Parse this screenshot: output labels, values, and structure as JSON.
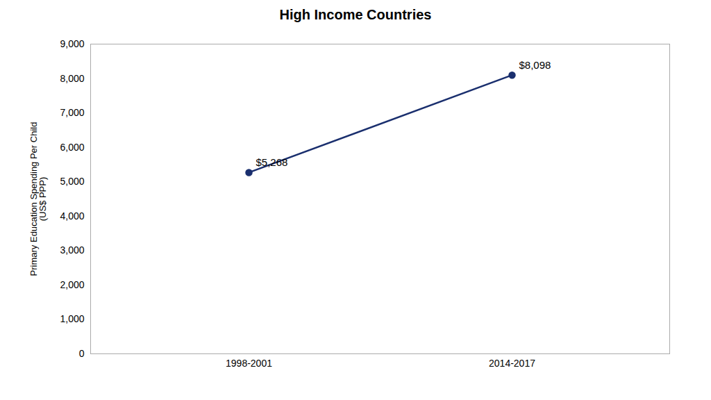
{
  "chart_data": {
    "type": "line",
    "title": "High Income Countries",
    "ylabel": "Primary Education Spending Per Child\n(US$ PPP)",
    "categories": [
      "1998-2001",
      "2014-2017"
    ],
    "values": [
      5268,
      8098
    ],
    "data_labels": true,
    "value_labels": [
      "$5,268",
      "$8,098"
    ],
    "color": "#1a2f6e",
    "marker": "circle",
    "ylim": [
      0,
      9000
    ],
    "yticks": [
      0,
      {
        "value": 1000,
        "label": "1,000"
      },
      {
        "value": 2000,
        "label": "2,000"
      },
      {
        "value": 3000,
        "label": "3,000"
      },
      {
        "value": 4000,
        "label": "4,000"
      },
      {
        "value": 5000,
        "label": "5,000"
      },
      {
        "value": 6000,
        "label": "6,000"
      },
      {
        "value": 7000,
        "label": "7,000"
      },
      {
        "value": 8000,
        "label": "8,000"
      },
      {
        "value": 9000,
        "label": "9,000"
      }
    ],
    "grid": false
  }
}
